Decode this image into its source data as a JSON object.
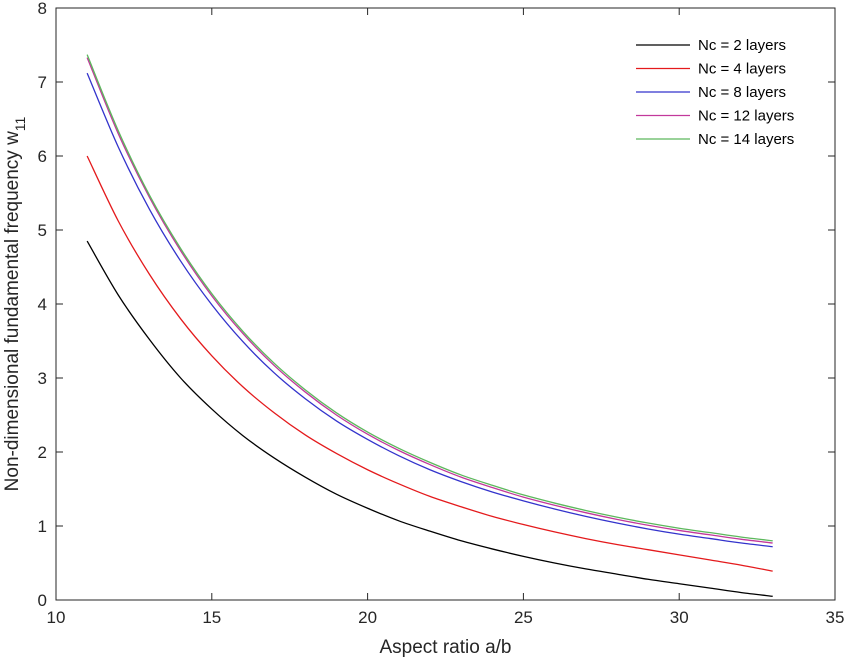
{
  "chart_data": {
    "type": "line",
    "title": "",
    "xlabel": "Aspect ratio a/b",
    "ylabel_main": "Non-dimensional fundamental frequency w",
    "ylabel_sub": "11",
    "xlim": [
      10,
      35
    ],
    "ylim": [
      0,
      8
    ],
    "xticks": [
      "10",
      "15",
      "20",
      "25",
      "30",
      "35"
    ],
    "yticks": [
      "0",
      "1",
      "2",
      "3",
      "4",
      "5",
      "6",
      "7",
      "8"
    ],
    "grid": false,
    "legend_position": "top-right",
    "x": [
      11,
      12,
      13,
      14,
      15,
      16,
      17,
      18,
      19,
      20,
      21,
      22,
      23,
      24,
      25,
      26,
      27,
      28,
      29,
      30,
      31,
      32,
      33
    ],
    "series": [
      {
        "name": "Nc = 2 layers",
        "color": "#000000",
        "values": [
          4.85,
          4.12,
          3.52,
          3.0,
          2.58,
          2.22,
          1.92,
          1.66,
          1.43,
          1.24,
          1.07,
          0.93,
          0.8,
          0.69,
          0.59,
          0.5,
          0.42,
          0.35,
          0.28,
          0.22,
          0.16,
          0.1,
          0.05
        ]
      },
      {
        "name": "Nc = 4 layers",
        "color": "#e41a1c",
        "values": [
          6.0,
          5.12,
          4.4,
          3.8,
          3.3,
          2.88,
          2.53,
          2.23,
          1.98,
          1.76,
          1.57,
          1.4,
          1.26,
          1.13,
          1.02,
          0.92,
          0.83,
          0.75,
          0.68,
          0.61,
          0.54,
          0.47,
          0.39
        ]
      },
      {
        "name": "Nc = 8 layers",
        "color": "#3333cc",
        "values": [
          7.12,
          6.12,
          5.28,
          4.58,
          3.99,
          3.49,
          3.07,
          2.72,
          2.42,
          2.17,
          1.95,
          1.76,
          1.6,
          1.46,
          1.34,
          1.23,
          1.13,
          1.04,
          0.96,
          0.89,
          0.83,
          0.77,
          0.72
        ]
      },
      {
        "name": "Nc = 12 layers",
        "color": "#c2389c",
        "values": [
          7.33,
          6.3,
          5.44,
          4.72,
          4.11,
          3.6,
          3.17,
          2.81,
          2.5,
          2.24,
          2.02,
          1.83,
          1.66,
          1.52,
          1.39,
          1.28,
          1.18,
          1.09,
          1.01,
          0.94,
          0.88,
          0.82,
          0.77
        ]
      },
      {
        "name": "Nc = 14 layers",
        "color": "#5cb85c",
        "values": [
          7.37,
          6.34,
          5.47,
          4.75,
          4.14,
          3.63,
          3.2,
          2.84,
          2.53,
          2.27,
          2.05,
          1.86,
          1.69,
          1.55,
          1.42,
          1.31,
          1.21,
          1.12,
          1.04,
          0.97,
          0.91,
          0.85,
          0.8
        ]
      }
    ]
  }
}
